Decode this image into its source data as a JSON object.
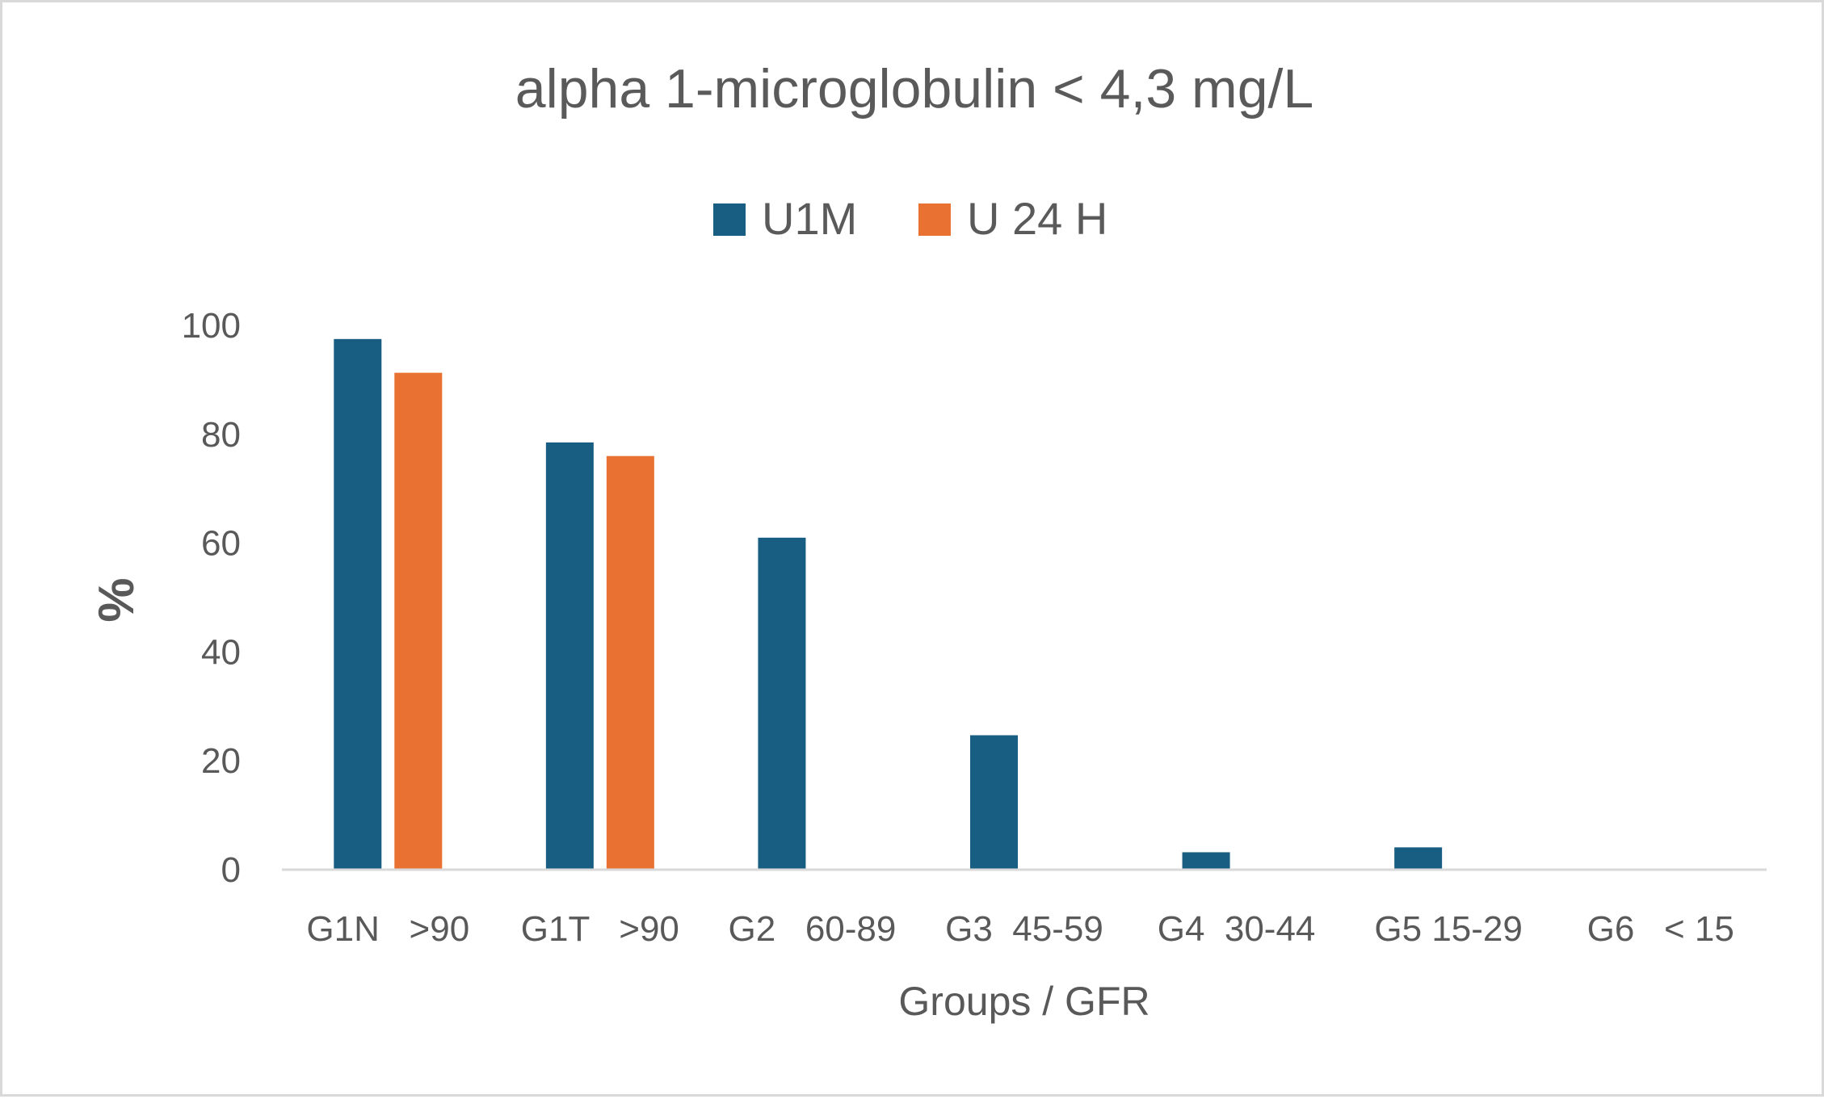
{
  "chart_data": {
    "type": "bar",
    "title": "alpha 1-microglobulin < 4,3 mg/L",
    "xlabel": "Groups / GFR",
    "ylabel": "%",
    "ylim": [
      0,
      100
    ],
    "yticks": [
      0,
      20,
      40,
      60,
      80,
      100
    ],
    "grid": false,
    "legend_position": "top",
    "categories": [
      "G1N   >90",
      "G1T   >90",
      "G2   60-89",
      "G3  45-59",
      "G4  30-44",
      "G5 15-29",
      "G6   < 15"
    ],
    "series": [
      {
        "name": "U1M",
        "color": "#175e82",
        "values": [
          97.5,
          78.5,
          61,
          24.7,
          3.2,
          4.1,
          0
        ]
      },
      {
        "name": "U 24 H",
        "color": "#e97132",
        "values": [
          91.3,
          76,
          null,
          null,
          null,
          null,
          null
        ]
      }
    ]
  }
}
